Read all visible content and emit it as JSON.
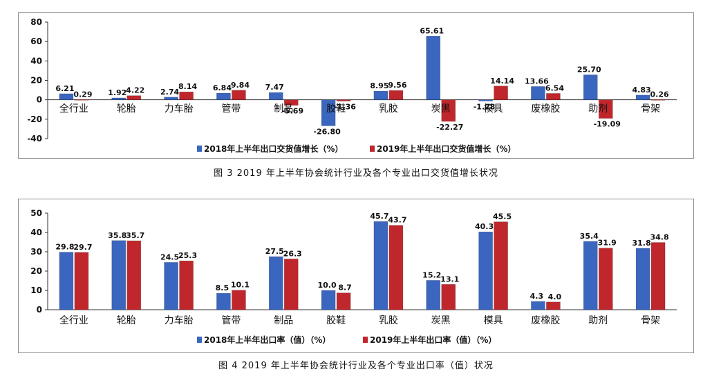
{
  "captions": {
    "fig3": "图 3  2019 年上半年协会统计行业及各个专业出口交货值增长状况",
    "fig4": "图 4  2019 年上半年协会统计行业及各个专业出口率（值）状况"
  },
  "colors": {
    "series_2018": "#3a66c0",
    "series_2019": "#c0272d"
  },
  "chart_data": [
    {
      "type": "bar",
      "categories": [
        "全行业",
        "轮胎",
        "力车胎",
        "管带",
        "制品",
        "胶鞋",
        "乳胶",
        "炭黑",
        "模具",
        "废橡胶",
        "助剂",
        "骨架"
      ],
      "series": [
        {
          "name": "2018年上半年出口交货值增长（%）",
          "values": [
            6.21,
            1.92,
            2.74,
            6.84,
            7.47,
            -26.8,
            8.95,
            65.61,
            -1.28,
            13.66,
            25.7,
            4.83
          ],
          "labels": [
            "6.21",
            "1.92",
            "2.74",
            "6.84",
            "7.47",
            "-26.80",
            "8.95",
            "65.61",
            "-1.28",
            "13.66",
            "25.70",
            "4.83"
          ]
        },
        {
          "name": "2019年上半年出口交货值增长（%）",
          "values": [
            0.29,
            4.22,
            8.14,
            9.84,
            -5.69,
            -1.36,
            9.56,
            -22.27,
            14.14,
            6.54,
            -19.09,
            0.26
          ],
          "labels": [
            "0.29",
            "4.22",
            "8.14",
            "9.84",
            "-5.69",
            "-1.36",
            "9.56",
            "-22.27",
            "14.14",
            "6.54",
            "-19.09",
            "0.26"
          ]
        }
      ],
      "ylim": [
        -40,
        80
      ],
      "yticks": [
        "80",
        "60",
        "40",
        "20",
        "0",
        "-20",
        "-40"
      ],
      "legend": "bottom"
    },
    {
      "type": "bar",
      "categories": [
        "全行业",
        "轮胎",
        "力车胎",
        "管带",
        "制品",
        "胶鞋",
        "乳胶",
        "炭黑",
        "模具",
        "废橡胶",
        "助剂",
        "骨架"
      ],
      "series": [
        {
          "name": "2018年上半年出口率（值）（%）",
          "values": [
            29.8,
            35.8,
            24.5,
            8.5,
            27.5,
            10.0,
            45.7,
            15.2,
            40.3,
            4.3,
            35.4,
            31.8
          ],
          "labels": [
            "29.8",
            "35.8",
            "24.5",
            "8.5",
            "27.5",
            "10.0",
            "45.7",
            "15.2",
            "40.3",
            "4.3",
            "35.4",
            "31.8"
          ]
        },
        {
          "name": "2019年上半年出口率（值）（%）",
          "values": [
            29.7,
            35.7,
            25.3,
            10.1,
            26.3,
            8.7,
            43.7,
            13.1,
            45.5,
            4.0,
            31.9,
            34.8
          ],
          "labels": [
            "29.7",
            "35.7",
            "25.3",
            "10.1",
            "26.3",
            "8.7",
            "43.7",
            "13.1",
            "45.5",
            "4.0",
            "31.9",
            "34.8"
          ]
        }
      ],
      "ylim": [
        0,
        50
      ],
      "yticks": [
        "50",
        "40",
        "30",
        "20",
        "10",
        "0"
      ],
      "legend": "bottom"
    }
  ]
}
